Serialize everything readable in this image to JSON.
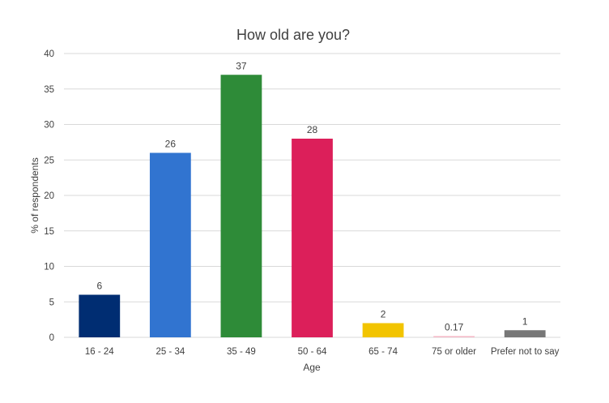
{
  "chart_data": {
    "type": "bar",
    "title": "How old are you?",
    "xlabel": "Age",
    "ylabel": "% of respondents",
    "categories": [
      "16 - 24",
      "25 - 34",
      "35 - 49",
      "50 - 64",
      "65 - 74",
      "75 or older",
      "Prefer not to say"
    ],
    "values": [
      6,
      26,
      37,
      28,
      2,
      0.17,
      1
    ],
    "data_labels": [
      "6",
      "26",
      "37",
      "28",
      "2",
      "0.17",
      "1"
    ],
    "colors": [
      "#002D72",
      "#3174D0",
      "#2E8B38",
      "#DC1F5A",
      "#F2C400",
      "#F4B6C5",
      "#777777"
    ],
    "ylim": [
      0,
      40
    ],
    "yticks": [
      0,
      5,
      10,
      15,
      20,
      25,
      30,
      35,
      40
    ],
    "grid": true,
    "legend": "none"
  }
}
